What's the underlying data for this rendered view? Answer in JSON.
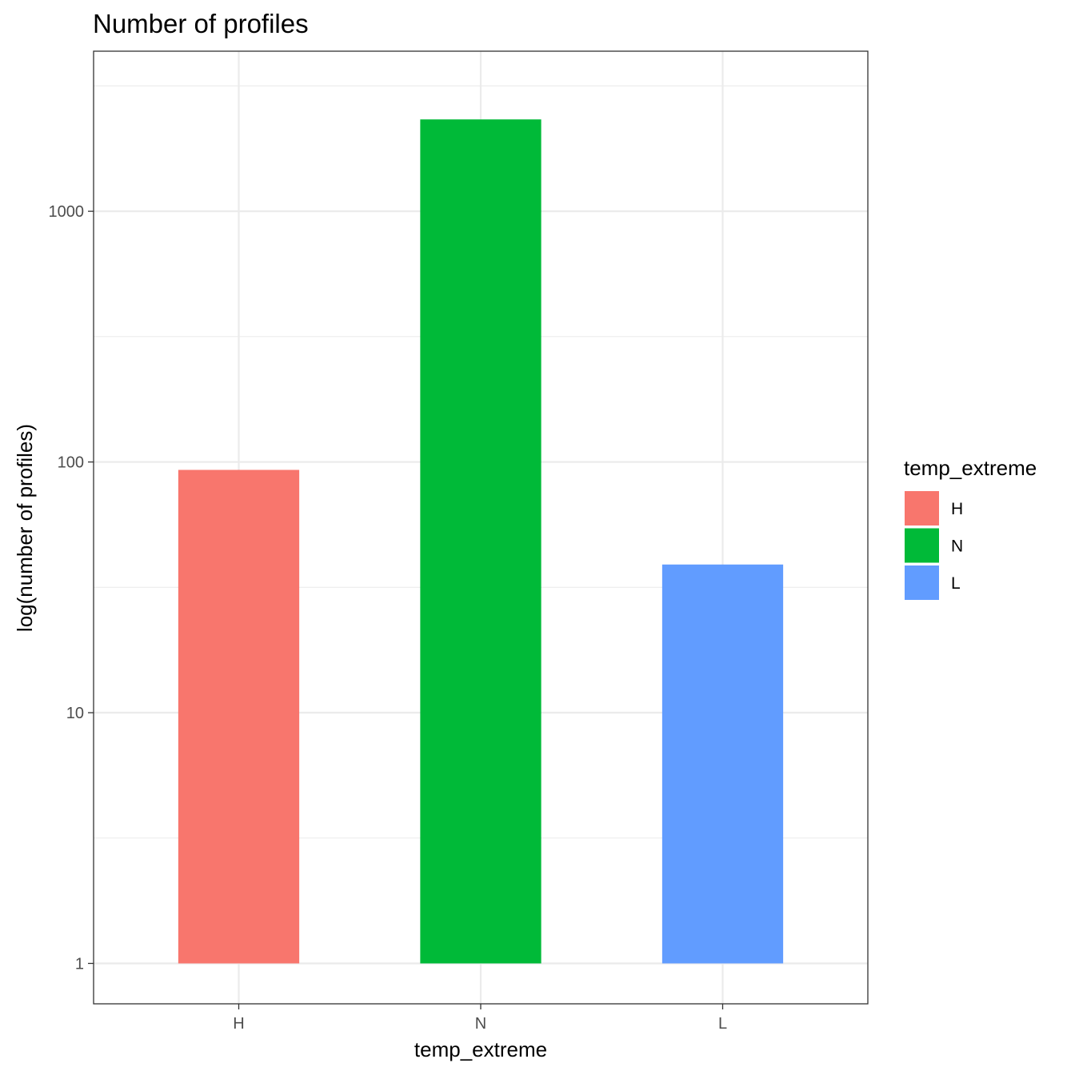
{
  "chart_data": {
    "type": "bar",
    "title": "Number of profiles",
    "xlabel": "temp_extreme",
    "ylabel": "log(number of profiles)",
    "categories": [
      "H",
      "N",
      "L"
    ],
    "values": [
      93,
      2325,
      39
    ],
    "bar_base": 1,
    "colors": [
      "#F8766D",
      "#00BA38",
      "#619CFF"
    ],
    "y_scale": "log10",
    "ylim": [
      0.69,
      4350
    ],
    "y_ticks": [
      1,
      10,
      100,
      1000
    ],
    "y_tick_labels": [
      "1",
      "10",
      "100",
      "1000"
    ],
    "y_minor_ticks": [
      3.1623,
      31.623,
      316.23,
      3162.3
    ],
    "grid": true,
    "legend": {
      "title": "temp_extreme",
      "position": "right",
      "entries": [
        "H",
        "N",
        "L"
      ]
    }
  }
}
